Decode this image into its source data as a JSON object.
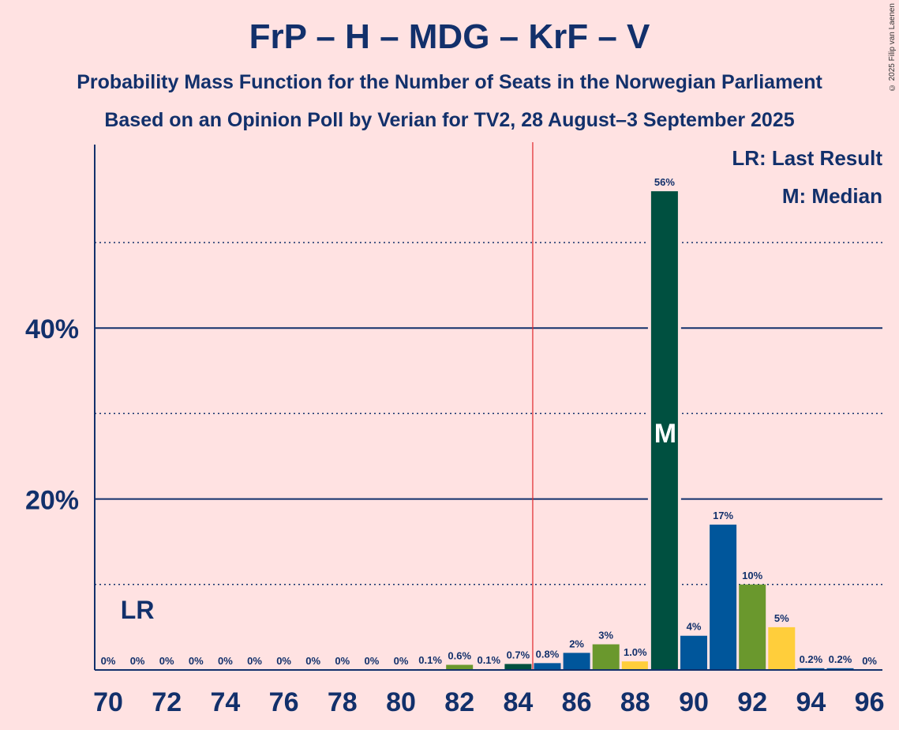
{
  "title": "FrP – H – MDG – KrF – V",
  "subtitle1": "Probability Mass Function for the Number of Seats in the Norwegian Parliament",
  "subtitle2": "Based on an Opinion Poll by Verian for TV2, 28 August–3 September 2025",
  "copyright": "© 2025 Filip van Laenen",
  "legend": {
    "lr": "LR: Last Result",
    "m": "M: Median"
  },
  "colors": {
    "background": "#FFE2E2",
    "text": "#12306B",
    "majority_line": "#E0272B",
    "bar_colors": [
      "#005040",
      "#00569B",
      "#6A982D",
      "#FFCE3B"
    ]
  },
  "chart_data": {
    "type": "bar",
    "xlabel": "",
    "ylabel": "",
    "x_ticks": [
      70,
      72,
      74,
      76,
      78,
      80,
      82,
      84,
      86,
      88,
      90,
      92,
      94,
      96
    ],
    "y_ticks": [
      "20%",
      "40%"
    ],
    "y_tick_values": [
      20,
      40
    ],
    "ylim": [
      0,
      61.5
    ],
    "xlim": [
      69.5,
      96.5
    ],
    "grid": "solid lines at 20% steps, dotted lines at 10% steps",
    "categories": [
      70,
      71,
      72,
      73,
      74,
      75,
      76,
      77,
      78,
      79,
      80,
      81,
      82,
      83,
      84,
      85,
      86,
      87,
      88,
      89,
      90,
      91,
      92,
      93,
      94,
      95,
      96
    ],
    "values": [
      0,
      0,
      0,
      0,
      0,
      0,
      0,
      0,
      0,
      0,
      0,
      0.1,
      0.6,
      0.1,
      0.7,
      0.8,
      2,
      3,
      1.0,
      56,
      4,
      17,
      10,
      5,
      0.2,
      0.2,
      0
    ],
    "value_labels": [
      "0%",
      "0%",
      "0%",
      "0%",
      "0%",
      "0%",
      "0%",
      "0%",
      "0%",
      "0%",
      "0%",
      "0.1%",
      "0.6%",
      "0.1%",
      "0.7%",
      "0.8%",
      "2%",
      "3%",
      "1.0%",
      "56%",
      "4%",
      "17%",
      "10%",
      "5%",
      "0.2%",
      "0.2%",
      "0%"
    ],
    "bar_color_index": [
      0,
      1,
      2,
      3,
      0,
      1,
      2,
      3,
      0,
      1,
      2,
      3,
      2,
      3,
      0,
      1,
      1,
      2,
      3,
      0,
      1,
      1,
      2,
      3,
      1,
      1,
      1
    ],
    "majority_line": 84.5,
    "last_result": {
      "x": 71,
      "label": "LR"
    },
    "median": {
      "x": 89,
      "label": "M"
    }
  }
}
